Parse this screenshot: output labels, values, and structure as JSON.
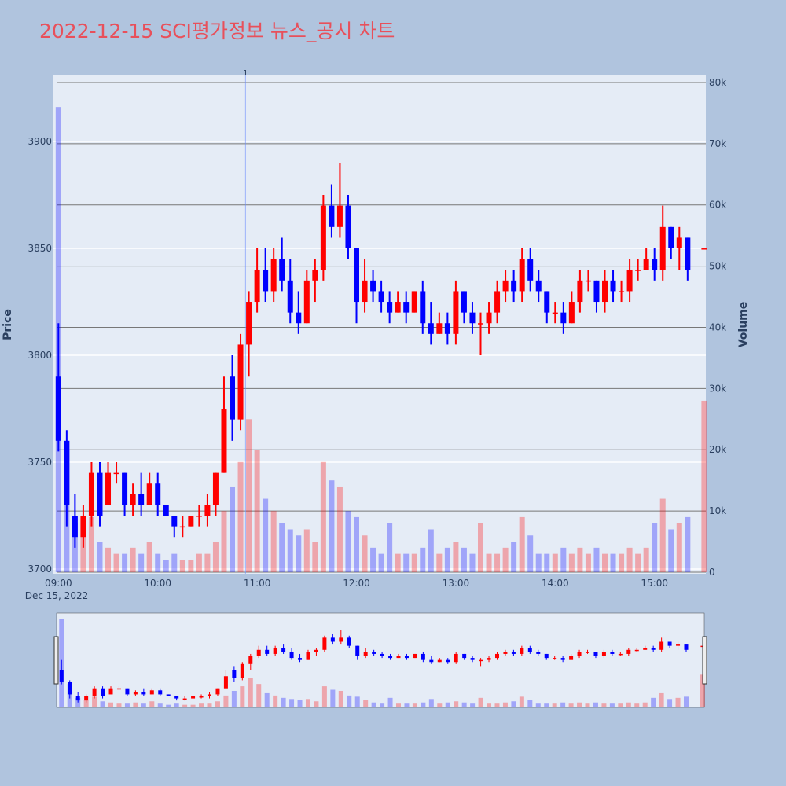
{
  "chart_data": {
    "type": "candlestick",
    "title": "2022-12-15 SCI평가정보 뉴스_공시 차트",
    "ylabel": "Price",
    "y2label": "Volume",
    "x_date_label": "Dec 15, 2022",
    "x": [
      "2022-12-15 09:00",
      "2022-12-15 09:05",
      "2022-12-15 09:10",
      "2022-12-15 09:15",
      "2022-12-15 09:20",
      "2022-12-15 09:25",
      "2022-12-15 09:30",
      "2022-12-15 09:35",
      "2022-12-15 09:40",
      "2022-12-15 09:45",
      "2022-12-15 09:50",
      "2022-12-15 09:55",
      "2022-12-15 10:00",
      "2022-12-15 10:05",
      "2022-12-15 10:10",
      "2022-12-15 10:15",
      "2022-12-15 10:20",
      "2022-12-15 10:25",
      "2022-12-15 10:30",
      "2022-12-15 10:35",
      "2022-12-15 10:40",
      "2022-12-15 10:45",
      "2022-12-15 10:50",
      "2022-12-15 10:55",
      "2022-12-15 11:00",
      "2022-12-15 11:05",
      "2022-12-15 11:10",
      "2022-12-15 11:15",
      "2022-12-15 11:20",
      "2022-12-15 11:25",
      "2022-12-15 11:30",
      "2022-12-15 11:35",
      "2022-12-15 11:40",
      "2022-12-15 11:45",
      "2022-12-15 11:50",
      "2022-12-15 11:55",
      "2022-12-15 12:00",
      "2022-12-15 12:05",
      "2022-12-15 12:10",
      "2022-12-15 12:15",
      "2022-12-15 12:20",
      "2022-12-15 12:25",
      "2022-12-15 12:30",
      "2022-12-15 12:35",
      "2022-12-15 12:40",
      "2022-12-15 12:45",
      "2022-12-15 12:50",
      "2022-12-15 12:55",
      "2022-12-15 13:00",
      "2022-12-15 13:05",
      "2022-12-15 13:10",
      "2022-12-15 13:15",
      "2022-12-15 13:20",
      "2022-12-15 13:25",
      "2022-12-15 13:30",
      "2022-12-15 13:35",
      "2022-12-15 13:40",
      "2022-12-15 13:45",
      "2022-12-15 13:50",
      "2022-12-15 13:55",
      "2022-12-15 14:00",
      "2022-12-15 14:05",
      "2022-12-15 14:10",
      "2022-12-15 14:15",
      "2022-12-15 14:20",
      "2022-12-15 14:25",
      "2022-12-15 14:30",
      "2022-12-15 14:35",
      "2022-12-15 14:40",
      "2022-12-15 14:45",
      "2022-12-15 14:50",
      "2022-12-15 14:55",
      "2022-12-15 15:00",
      "2022-12-15 15:05",
      "2022-12-15 15:10",
      "2022-12-15 15:15",
      "2022-12-15 15:20",
      "2022-12-15 15:30"
    ],
    "open": [
      3790,
      3760,
      3725,
      3715,
      3725,
      3745,
      3730,
      3745,
      3745,
      3730,
      3735,
      3730,
      3740,
      3730,
      3725,
      3720,
      3720,
      3725,
      3725,
      3730,
      3745,
      3790,
      3770,
      3805,
      3825,
      3840,
      3830,
      3845,
      3835,
      3820,
      3815,
      3835,
      3840,
      3870,
      3860,
      3870,
      3850,
      3825,
      3835,
      3830,
      3825,
      3820,
      3825,
      3820,
      3830,
      3815,
      3810,
      3815,
      3810,
      3830,
      3820,
      3815,
      3815,
      3820,
      3830,
      3835,
      3830,
      3845,
      3835,
      3830,
      3820,
      3820,
      3815,
      3825,
      3835,
      3835,
      3825,
      3835,
      3830,
      3830,
      3840,
      3840,
      3845,
      3840,
      3860,
      3850,
      3855,
      3850
    ],
    "high": [
      3815,
      3765,
      3735,
      3730,
      3750,
      3750,
      3750,
      3750,
      3745,
      3740,
      3745,
      3745,
      3745,
      3730,
      3725,
      3725,
      3725,
      3730,
      3735,
      3745,
      3790,
      3800,
      3810,
      3830,
      3850,
      3850,
      3850,
      3855,
      3845,
      3830,
      3840,
      3845,
      3875,
      3880,
      3890,
      3875,
      3850,
      3845,
      3840,
      3835,
      3830,
      3830,
      3830,
      3830,
      3835,
      3825,
      3820,
      3820,
      3835,
      3830,
      3825,
      3820,
      3825,
      3835,
      3840,
      3840,
      3850,
      3850,
      3840,
      3830,
      3825,
      3825,
      3830,
      3840,
      3840,
      3835,
      3840,
      3840,
      3835,
      3845,
      3845,
      3850,
      3850,
      3870,
      3860,
      3860,
      3855,
      3850
    ],
    "low": [
      3755,
      3720,
      3710,
      3710,
      3720,
      3720,
      3730,
      3740,
      3725,
      3725,
      3725,
      3730,
      3725,
      3725,
      3715,
      3715,
      3720,
      3720,
      3720,
      3725,
      3745,
      3760,
      3765,
      3790,
      3820,
      3825,
      3825,
      3830,
      3815,
      3810,
      3815,
      3825,
      3835,
      3855,
      3855,
      3845,
      3815,
      3820,
      3825,
      3820,
      3815,
      3820,
      3815,
      3820,
      3810,
      3805,
      3810,
      3805,
      3805,
      3815,
      3810,
      3800,
      3810,
      3815,
      3825,
      3825,
      3825,
      3830,
      3825,
      3815,
      3815,
      3810,
      3815,
      3820,
      3830,
      3820,
      3820,
      3825,
      3825,
      3825,
      3835,
      3840,
      3835,
      3835,
      3845,
      3840,
      3835,
      3850
    ],
    "close": [
      3760,
      3730,
      3715,
      3725,
      3745,
      3725,
      3745,
      3745,
      3730,
      3735,
      3730,
      3740,
      3730,
      3725,
      3720,
      3720,
      3725,
      3725,
      3730,
      3745,
      3775,
      3770,
      3805,
      3825,
      3840,
      3830,
      3845,
      3835,
      3820,
      3815,
      3835,
      3840,
      3870,
      3860,
      3870,
      3850,
      3825,
      3835,
      3830,
      3825,
      3820,
      3825,
      3820,
      3830,
      3815,
      3810,
      3815,
      3810,
      3830,
      3820,
      3815,
      3815,
      3820,
      3830,
      3835,
      3830,
      3845,
      3835,
      3830,
      3820,
      3820,
      3815,
      3825,
      3835,
      3835,
      3825,
      3835,
      3830,
      3830,
      3840,
      3840,
      3845,
      3840,
      3860,
      3850,
      3855,
      3840,
      3850
    ],
    "volume": [
      76000,
      20000,
      8000,
      6000,
      9000,
      5000,
      4000,
      3000,
      3000,
      4000,
      3000,
      5000,
      3000,
      2000,
      3000,
      2000,
      2000,
      3000,
      3000,
      5000,
      10000,
      14000,
      18000,
      25000,
      20000,
      12000,
      10000,
      8000,
      7000,
      6000,
      7000,
      5000,
      18000,
      15000,
      14000,
      10000,
      9000,
      6000,
      4000,
      3000,
      8000,
      3000,
      3000,
      3000,
      4000,
      7000,
      3000,
      4000,
      5000,
      4000,
      3000,
      8000,
      3000,
      3000,
      4000,
      5000,
      9000,
      6000,
      3000,
      3000,
      3000,
      4000,
      3000,
      4000,
      3000,
      4000,
      3000,
      3000,
      3000,
      4000,
      3000,
      4000,
      8000,
      12000,
      7000,
      8000,
      9000,
      28000
    ],
    "increasing_color": "#ff0000",
    "decreasing_color": "#0000ff",
    "xlim": [
      "2022-12-15 08:57",
      "2022-12-15 15:31"
    ],
    "xticks": [
      {
        "value": "2022-12-15 09:00",
        "label": "09:00"
      },
      {
        "value": "2022-12-15 10:00",
        "label": "10:00"
      },
      {
        "value": "2022-12-15 11:00",
        "label": "11:00"
      },
      {
        "value": "2022-12-15 12:00",
        "label": "12:00"
      },
      {
        "value": "2022-12-15 13:00",
        "label": "13:00"
      },
      {
        "value": "2022-12-15 14:00",
        "label": "14:00"
      },
      {
        "value": "2022-12-15 15:00",
        "label": "15:00"
      }
    ],
    "ylim": [
      3697.8,
      3930.9
    ],
    "yticks": [
      3700,
      3750,
      3800,
      3850,
      3900
    ],
    "y2lim": [
      -257,
      81155
    ],
    "y2ticks": [
      0,
      {
        "value": 10000,
        "label": "10k"
      },
      {
        "value": 20000,
        "label": "20k"
      },
      {
        "value": 30000,
        "label": "30k"
      },
      {
        "value": 40000,
        "label": "40k"
      },
      {
        "value": 50000,
        "label": "50k"
      },
      {
        "value": 60000,
        "label": "60k"
      },
      {
        "value": 70000,
        "label": "70k"
      },
      {
        "value": 80000,
        "label": "80k"
      }
    ],
    "annotations": [
      {
        "x": "2022-12-15 10:53",
        "text": "1"
      }
    ],
    "grid": true,
    "rangeslider": true
  }
}
